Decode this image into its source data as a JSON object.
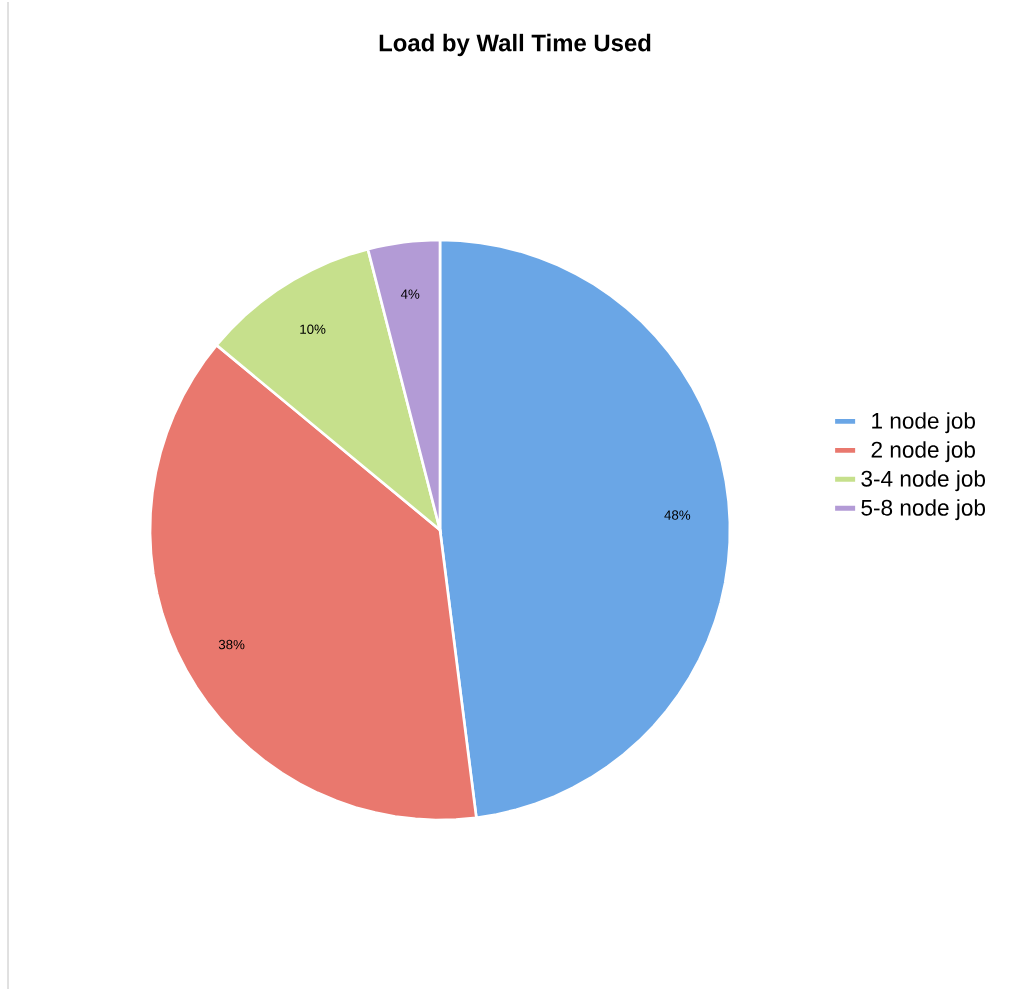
{
  "chart_data": {
    "type": "pie",
    "title": "Load by Wall Time Used",
    "categories": [
      "1 node job",
      "2 node job",
      "3-4 node job",
      "5-8 node job"
    ],
    "values": [
      48,
      38,
      10,
      4
    ],
    "value_labels": [
      "48%",
      "38%",
      "10%",
      "4%"
    ],
    "colors": [
      "#6aa6e6",
      "#e9786e",
      "#c6e08c",
      "#b39bd6"
    ],
    "legend": "right"
  }
}
